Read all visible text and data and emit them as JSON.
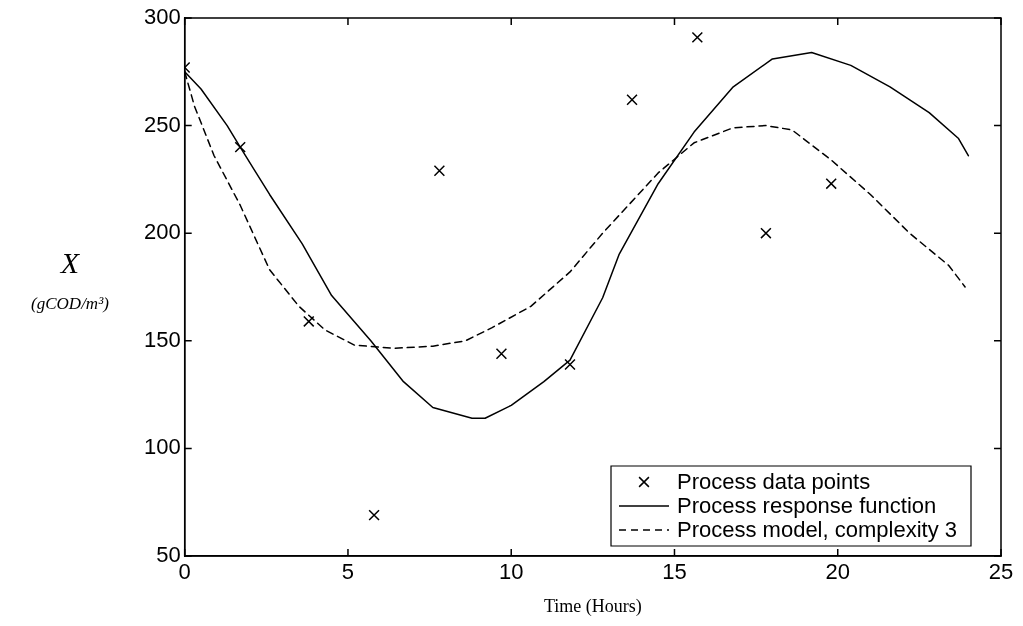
{
  "chart_data": {
    "type": "scatter",
    "xlabel": "Time (Hours)",
    "ylabel": "X\n(gCOD/m³)",
    "xlim": [
      0,
      25
    ],
    "xticks": [
      0,
      5,
      10,
      15,
      20,
      25
    ],
    "ylim": [
      50,
      300
    ],
    "yticks": [
      50,
      100,
      150,
      200,
      250,
      300
    ],
    "grid": false,
    "legend": "bottom right",
    "series": [
      {
        "name": "Process data points",
        "marker": "cross",
        "color": "#000000",
        "x": [
          0,
          1.7,
          3.8,
          5.8,
          7.8,
          9.7,
          11.8,
          13.7,
          15.7,
          17.8,
          19.8
        ],
        "values": [
          277,
          240,
          159,
          69,
          229,
          144,
          139,
          262,
          291,
          200,
          223
        ]
      },
      {
        "name": "Process response function",
        "type": "line",
        "marker": "none",
        "line_style": "solid",
        "color": "#000000",
        "x": [
          0,
          0.5,
          1.3,
          1.7,
          2.6,
          3.6,
          4.5,
          5.7,
          6.7,
          7.6,
          8.8,
          9.2,
          10,
          11,
          11.8,
          12.8,
          13.3,
          14.5,
          15.6,
          16.8,
          18,
          19.2,
          20.4,
          21.6,
          22.8,
          23.7,
          24
        ],
        "values": [
          275,
          267,
          250,
          240,
          218,
          195,
          171,
          150,
          131,
          119,
          114,
          114,
          120,
          131,
          141,
          170,
          190,
          223,
          247,
          268,
          281,
          284,
          278,
          268,
          256,
          244,
          236
        ]
      },
      {
        "name": "Process model, complexity 3",
        "type": "line",
        "marker": "none",
        "line_style": "dashed",
        "color": "#000000",
        "x": [
          0,
          0.3,
          0.9,
          1.7,
          2.6,
          3.5,
          4.3,
          5.2,
          6.4,
          7.6,
          8.6,
          9.4,
          10.6,
          11.8,
          12.8,
          14.5,
          15.6,
          16.8,
          17.8,
          18.6,
          19.8,
          21,
          22.2,
          23.4,
          23.9
        ],
        "values": [
          275,
          259,
          236,
          213,
          183,
          166,
          155,
          148,
          146.5,
          147.5,
          150,
          156,
          166,
          182,
          200,
          228,
          242,
          249,
          250,
          248,
          234,
          218,
          200,
          185,
          175
        ]
      }
    ]
  }
}
